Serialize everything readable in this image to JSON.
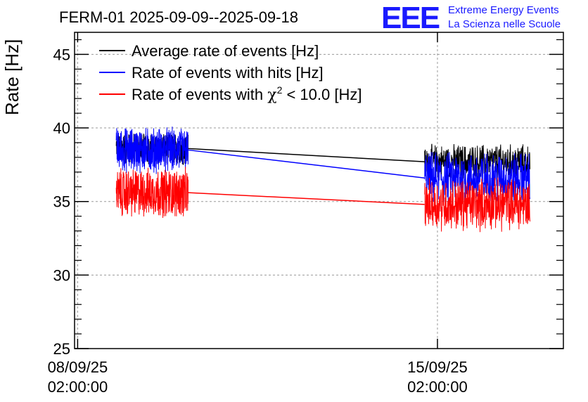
{
  "chart_data": {
    "type": "line",
    "title": "FERM-01 2025-09-09--2025-09-18",
    "xlabel": "",
    "ylabel": "Rate [Hz]",
    "ylim": [
      25,
      46.5
    ],
    "xlim_days": [
      -0.06,
      9.45
    ],
    "x_unit": "days since 08/09/25 02:00:00",
    "yticks": [
      "25",
      "30",
      "35",
      "40",
      "45"
    ],
    "xticks": [
      {
        "day": 0,
        "date": "08/09/25",
        "time": "02:00:00"
      },
      {
        "day": 7,
        "date": "15/09/25",
        "time": "02:00:00"
      }
    ],
    "grid": true,
    "legend_position": "top-left",
    "logo": {
      "mark": "EEE",
      "line1": "Extreme Energy Events",
      "line2": "La Scienza nelle Scuole"
    },
    "series": [
      {
        "name": "Average rate of events [Hz]",
        "color": "#000000",
        "segments": [
          {
            "x_start": 0.75,
            "x_end": 2.15,
            "y_center": 38.6,
            "spread": 0.9
          },
          {
            "x_start": 6.75,
            "x_end": 8.8,
            "y_center": 37.7,
            "spread": 1.0
          }
        ]
      },
      {
        "name": "Rate of events with hits [Hz]",
        "color": "#0000ff",
        "segments": [
          {
            "x_start": 0.75,
            "x_end": 2.15,
            "y_center": 38.5,
            "spread": 1.3
          },
          {
            "x_start": 6.75,
            "x_end": 8.8,
            "y_center": 36.6,
            "spread": 1.5
          }
        ]
      },
      {
        "name": "Rate of events with χ² < 10.0 [Hz]",
        "legend_prefix": "Rate of events with ",
        "legend_chi": "χ",
        "legend_sup": "2",
        "legend_suffix": " < 10.0 [Hz]",
        "color": "#ff0000",
        "segments": [
          {
            "x_start": 0.75,
            "x_end": 2.15,
            "y_center": 35.6,
            "spread": 1.4
          },
          {
            "x_start": 6.75,
            "x_end": 8.8,
            "y_center": 34.8,
            "spread": 1.5
          }
        ]
      }
    ]
  }
}
